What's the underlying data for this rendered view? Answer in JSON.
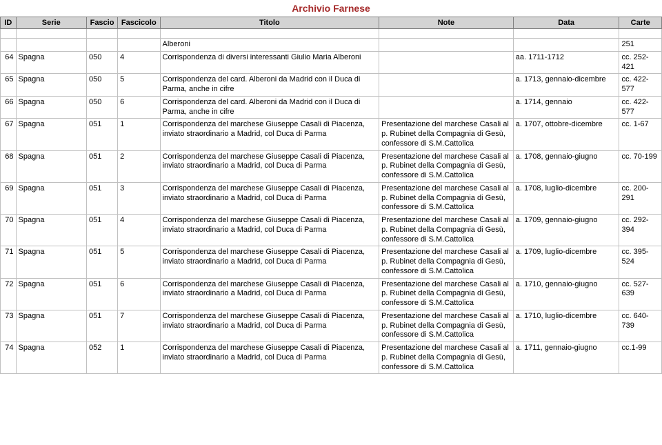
{
  "title": "Archivio Farnese",
  "columns": [
    "ID",
    "Serie",
    "Fascio",
    "Fascicolo",
    "Titolo",
    "Note",
    "Data",
    "Carte"
  ],
  "rows": [
    {
      "id": "",
      "serie": "",
      "fascio": "",
      "fascicolo": "",
      "titolo": "Alberoni",
      "note": "",
      "data": "",
      "carte": "251"
    },
    {
      "id": "64",
      "serie": "Spagna",
      "fascio": "050",
      "fascicolo": "4",
      "titolo": "Corrispondenza di diversi interessanti Giulio Maria Alberoni",
      "note": "",
      "data": "aa. 1711-1712",
      "carte": "cc. 252-421"
    },
    {
      "id": "65",
      "serie": "Spagna",
      "fascio": "050",
      "fascicolo": "5",
      "titolo": "Corrispondenza del card. Alberoni da Madrid con il Duca di Parma, anche in cifre",
      "note": "",
      "data": "a. 1713, gennaio-dicembre",
      "carte": "cc. 422-577"
    },
    {
      "id": "66",
      "serie": "Spagna",
      "fascio": "050",
      "fascicolo": "6",
      "titolo": "Corrispondenza del card. Alberoni da Madrid con il Duca di Parma, anche in cifre",
      "note": "",
      "data": "a. 1714, gennaio",
      "carte": "cc. 422-577"
    },
    {
      "id": "67",
      "serie": "Spagna",
      "fascio": "051",
      "fascicolo": "1",
      "titolo": "Corrispondenza del marchese Giuseppe Casali di Piacenza, inviato straordinario a Madrid, col Duca di Parma",
      "note": "Presentazione del marchese Casali al p. Rubinet della Compagnia di Gesù, confessore di S.M.Cattolica",
      "data": "a. 1707, ottobre-dicembre",
      "carte": "cc. 1-67"
    },
    {
      "id": "68",
      "serie": "Spagna",
      "fascio": "051",
      "fascicolo": "2",
      "titolo": "Corrispondenza del marchese Giuseppe Casali di Piacenza, inviato straordinario a Madrid, col Duca di Parma",
      "note": "Presentazione del marchese Casali al p. Rubinet della Compagnia di Gesù, confessore di S.M.Cattolica",
      "data": "a. 1708, gennaio-giugno",
      "carte": "cc. 70-199"
    },
    {
      "id": "69",
      "serie": "Spagna",
      "fascio": "051",
      "fascicolo": "3",
      "titolo": "Corrispondenza del marchese Giuseppe Casali di Piacenza, inviato straordinario a Madrid, col Duca di Parma",
      "note": "Presentazione del marchese Casali al p. Rubinet della Compagnia di Gesù, confessore di S.M.Cattolica",
      "data": "a. 1708, luglio-dicembre",
      "carte": "cc. 200-291"
    },
    {
      "id": "70",
      "serie": "Spagna",
      "fascio": "051",
      "fascicolo": "4",
      "titolo": "Corrispondenza del marchese Giuseppe Casali di Piacenza, inviato straordinario a Madrid, col Duca di Parma",
      "note": "Presentazione del marchese Casali al p. Rubinet della Compagnia di Gesù, confessore di S.M.Cattolica",
      "data": "a. 1709, gennaio-giugno",
      "carte": "cc. 292-394"
    },
    {
      "id": "71",
      "serie": "Spagna",
      "fascio": "051",
      "fascicolo": "5",
      "titolo": "Corrispondenza del marchese Giuseppe Casali di Piacenza, inviato straordinario a Madrid, col Duca di Parma",
      "note": "Presentazione del marchese Casali al p. Rubinet della Compagnia di Gesù, confessore di S.M.Cattolica",
      "data": "a. 1709, luglio-dicembre",
      "carte": "cc. 395-524"
    },
    {
      "id": "72",
      "serie": "Spagna",
      "fascio": "051",
      "fascicolo": "6",
      "titolo": "Corrispondenza del marchese Giuseppe Casali di Piacenza, inviato straordinario a Madrid, col Duca di Parma",
      "note": "Presentazione del marchese Casali al p. Rubinet della Compagnia di Gesù, confessore di S.M.Cattolica",
      "data": "a. 1710, gennaio-giugno",
      "carte": "cc. 527-639"
    },
    {
      "id": "73",
      "serie": "Spagna",
      "fascio": "051",
      "fascicolo": "7",
      "titolo": "Corrispondenza del marchese Giuseppe Casali di Piacenza, inviato straordinario a Madrid, col Duca di Parma",
      "note": "Presentazione del marchese Casali al p. Rubinet della Compagnia di Gesù, confessore di S.M.Cattolica",
      "data": "a. 1710, luglio-dicembre",
      "carte": "cc. 640-739"
    },
    {
      "id": "74",
      "serie": "Spagna",
      "fascio": "052",
      "fascicolo": "1",
      "titolo": "Corrispondenza del marchese Giuseppe Casali di Piacenza, inviato straordinario a Madrid, col Duca di Parma",
      "note": "Presentazione del marchese Casali al p. Rubinet della Compagnia di Gesù, confessore di S.M.Cattolica",
      "data": "a. 1711, gennaio-giugno",
      "carte": "cc.1-99"
    }
  ]
}
